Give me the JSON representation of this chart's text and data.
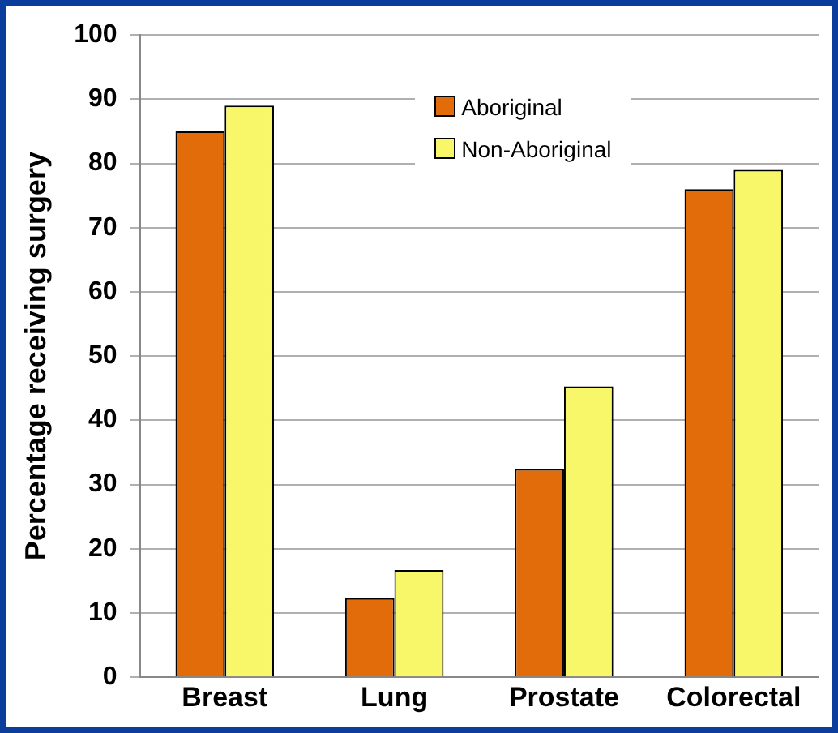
{
  "chart_data": {
    "type": "bar",
    "ylabel": "Percentage receiving surgery",
    "categories": [
      "Breast",
      "Lung",
      "Prostate",
      "Colorectal"
    ],
    "series": [
      {
        "name": "Aboriginal",
        "color": "#e36c0a",
        "values": [
          85,
          12.3,
          32.4,
          76
        ]
      },
      {
        "name": "Non-Aboriginal",
        "color": "#f8f76a",
        "values": [
          89,
          16.7,
          45.3,
          79
        ]
      }
    ],
    "ylim": [
      0,
      100
    ],
    "yticks": [
      0,
      10,
      20,
      30,
      40,
      50,
      60,
      70,
      80,
      90,
      100
    ],
    "grid": "y",
    "legend": "top"
  }
}
